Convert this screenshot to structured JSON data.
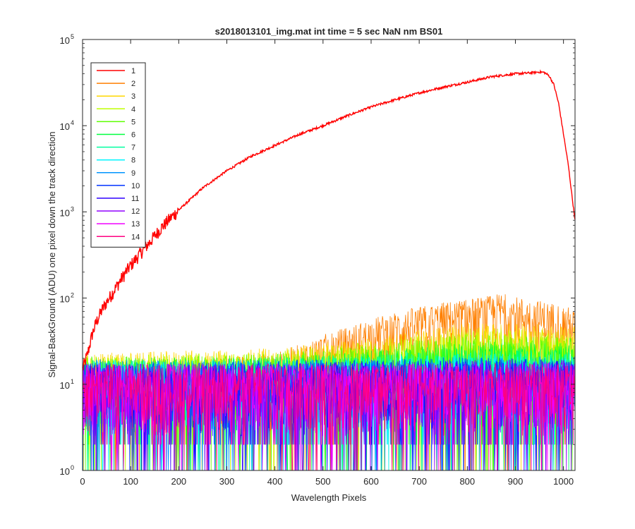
{
  "chart_data": {
    "type": "line",
    "title": "s2018013101_img.mat int time = 5 sec  NaN nm BS01",
    "xlabel": "Wavelength Pixels",
    "ylabel": "Signal-BackGround (ADU) one pixel down the track direction",
    "xlim": [
      0,
      1024
    ],
    "ylim": [
      1,
      100000
    ],
    "yscale": "log",
    "grid": false,
    "legend_position": "top-left",
    "x_ticks": [
      {
        "value": 0,
        "label": "0"
      },
      {
        "value": 100,
        "label": "100"
      },
      {
        "value": 200,
        "label": "200"
      },
      {
        "value": 300,
        "label": "300"
      },
      {
        "value": 400,
        "label": "400"
      },
      {
        "value": 500,
        "label": "500"
      },
      {
        "value": 600,
        "label": "600"
      },
      {
        "value": 700,
        "label": "700"
      },
      {
        "value": 800,
        "label": "800"
      },
      {
        "value": 900,
        "label": "900"
      },
      {
        "value": 1000,
        "label": "1000"
      }
    ],
    "y_ticks": [
      {
        "value": 1,
        "label": "10",
        "exp": "0"
      },
      {
        "value": 10,
        "label": "10",
        "exp": "1"
      },
      {
        "value": 100,
        "label": "10",
        "exp": "2"
      },
      {
        "value": 1000,
        "label": "10",
        "exp": "3"
      },
      {
        "value": 10000,
        "label": "10",
        "exp": "4"
      },
      {
        "value": 100000,
        "label": "10",
        "exp": "5"
      }
    ],
    "series": [
      {
        "name": "1",
        "color": "#ff0000",
        "x": [
          0,
          10,
          20,
          30,
          40,
          50,
          60,
          70,
          80,
          90,
          100,
          120,
          140,
          160,
          180,
          200,
          250,
          300,
          350,
          400,
          450,
          500,
          550,
          600,
          650,
          700,
          750,
          800,
          850,
          900,
          930,
          950,
          960,
          970,
          980,
          990,
          1000,
          1010,
          1020,
          1024
        ],
        "y": [
          15,
          22,
          38,
          55,
          72,
          90,
          110,
          135,
          165,
          200,
          240,
          330,
          450,
          620,
          820,
          1050,
          1900,
          3000,
          4400,
          5900,
          7900,
          10000,
          13000,
          16500,
          20000,
          24000,
          28000,
          32000,
          37000,
          40000,
          41000,
          42000,
          41500,
          38000,
          30000,
          18000,
          8000,
          3500,
          1200,
          800
        ]
      },
      {
        "name": "2",
        "color": "#ff7f00",
        "x": [
          0,
          100,
          200,
          300,
          400,
          450,
          500,
          550,
          600,
          650,
          700,
          750,
          800,
          850,
          870,
          900,
          950,
          1000,
          1024
        ],
        "y": [
          12,
          13,
          13,
          14,
          16,
          20,
          26,
          32,
          40,
          48,
          55,
          62,
          68,
          74,
          80,
          72,
          65,
          58,
          50
        ]
      },
      {
        "name": "3",
        "color": "#ffd700",
        "x": [
          0,
          200,
          400,
          600,
          800,
          1024
        ],
        "y": [
          13,
          14,
          15,
          20,
          30,
          28
        ]
      },
      {
        "name": "4",
        "color": "#bfff00",
        "x": [
          0,
          200,
          400,
          600,
          800,
          1024
        ],
        "y": [
          12,
          13,
          14,
          18,
          26,
          24
        ]
      },
      {
        "name": "5",
        "color": "#5cff00",
        "x": [
          0,
          200,
          400,
          600,
          800,
          1024
        ],
        "y": [
          12,
          12,
          13,
          16,
          22,
          20
        ]
      },
      {
        "name": "6",
        "color": "#00ff3f",
        "x": [
          0,
          200,
          400,
          600,
          800,
          1024
        ],
        "y": [
          11,
          12,
          12,
          14,
          18,
          17
        ]
      },
      {
        "name": "7",
        "color": "#00ffa0",
        "x": [
          0,
          200,
          400,
          600,
          800,
          1024
        ],
        "y": [
          11,
          11,
          12,
          13,
          15,
          14
        ]
      },
      {
        "name": "8",
        "color": "#00f5ff",
        "x": [
          0,
          200,
          400,
          600,
          800,
          1024
        ],
        "y": [
          11,
          11,
          11,
          12,
          13,
          13
        ]
      },
      {
        "name": "9",
        "color": "#0095ff",
        "x": [
          0,
          200,
          400,
          600,
          800,
          1024
        ],
        "y": [
          11,
          11,
          11,
          11,
          12,
          12
        ]
      },
      {
        "name": "10",
        "color": "#0033ff",
        "x": [
          0,
          200,
          400,
          600,
          800,
          1024
        ],
        "y": [
          10,
          10,
          11,
          11,
          12,
          11
        ]
      },
      {
        "name": "11",
        "color": "#2e00ff",
        "x": [
          0,
          200,
          400,
          600,
          800,
          1024
        ],
        "y": [
          10,
          10,
          10,
          11,
          11,
          11
        ]
      },
      {
        "name": "12",
        "color": "#9000ff",
        "x": [
          0,
          200,
          400,
          600,
          800,
          1024
        ],
        "y": [
          10,
          10,
          10,
          10,
          11,
          11
        ]
      },
      {
        "name": "13",
        "color": "#f000ff",
        "x": [
          0,
          200,
          400,
          600,
          800,
          1024
        ],
        "y": [
          10,
          10,
          10,
          10,
          10,
          10
        ]
      },
      {
        "name": "14",
        "color": "#ff0080",
        "x": [
          0,
          200,
          400,
          600,
          800,
          1024
        ],
        "y": [
          10,
          10,
          10,
          10,
          10,
          10
        ]
      }
    ]
  }
}
